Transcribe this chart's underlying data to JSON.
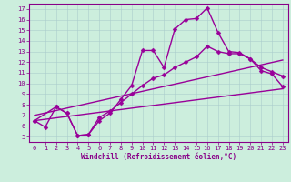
{
  "xlabel": "Windchill (Refroidissement éolien,°C)",
  "bg_color": "#cceedd",
  "line_color": "#990099",
  "xlim": [
    -0.5,
    23.5
  ],
  "ylim": [
    4.5,
    17.5
  ],
  "xticks": [
    0,
    1,
    2,
    3,
    4,
    5,
    6,
    7,
    8,
    9,
    10,
    11,
    12,
    13,
    14,
    15,
    16,
    17,
    18,
    19,
    20,
    21,
    22,
    23
  ],
  "yticks": [
    5,
    6,
    7,
    8,
    9,
    10,
    11,
    12,
    13,
    14,
    15,
    16,
    17
  ],
  "line1_x": [
    0,
    1,
    2,
    3,
    4,
    5,
    6,
    7,
    8,
    9,
    10,
    11,
    12,
    13,
    14,
    15,
    16,
    17,
    18,
    19,
    20,
    21,
    22,
    23
  ],
  "line1_y": [
    6.5,
    5.9,
    7.8,
    7.2,
    5.1,
    5.2,
    6.5,
    7.2,
    8.5,
    9.8,
    13.1,
    13.1,
    11.5,
    15.1,
    16.0,
    16.1,
    17.1,
    14.8,
    13.0,
    12.9,
    12.3,
    11.2,
    10.9,
    9.7
  ],
  "line2_x": [
    0,
    2,
    3,
    4,
    5,
    6,
    7,
    8,
    9,
    10,
    11,
    12,
    13,
    14,
    15,
    16,
    17,
    18,
    19,
    20,
    21,
    22,
    23
  ],
  "line2_y": [
    6.5,
    7.8,
    7.2,
    5.1,
    5.2,
    6.8,
    7.4,
    8.2,
    9.0,
    9.8,
    10.5,
    10.8,
    11.5,
    12.0,
    12.5,
    13.5,
    13.0,
    12.8,
    12.8,
    12.3,
    11.5,
    11.1,
    10.7
  ],
  "trend1_x": [
    0,
    23
  ],
  "trend1_y": [
    6.5,
    9.5
  ],
  "trend2_x": [
    0,
    23
  ],
  "trend2_y": [
    7.0,
    12.2
  ],
  "markersize": 2.5,
  "linewidth": 1.0
}
